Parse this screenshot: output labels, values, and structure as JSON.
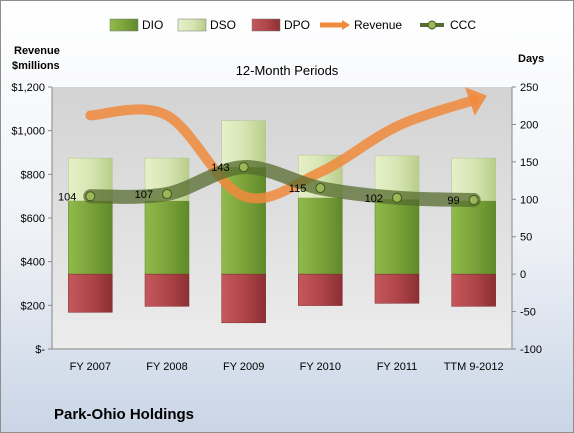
{
  "chart_data": {
    "type": "bar",
    "title": "Park-Ohio Holdings",
    "subtitle": "12-Month Periods",
    "categories": [
      "FY 2007",
      "FY 2008",
      "FY 2009",
      "FY 2010",
      "FY 2011",
      "TTM 9-2012"
    ],
    "left_axis": {
      "label_line1": "Revenue",
      "label_line2": "$millions",
      "ticks": [
        "$-",
        "$200",
        "$400",
        "$600",
        "$800",
        "$1,000",
        "$1,200"
      ],
      "range": [
        0,
        1200
      ]
    },
    "right_axis": {
      "label": "Days",
      "ticks": [
        "-100",
        "-50",
        "0",
        "50",
        "100",
        "150",
        "200",
        "250"
      ],
      "range": [
        -100,
        250
      ]
    },
    "series": [
      {
        "name": "DIO",
        "type": "stacked-bar",
        "axis": "days",
        "color": "#7ca33a",
        "values": [
          98,
          98,
          143,
          102,
          100,
          98
        ]
      },
      {
        "name": "DSO",
        "type": "stacked-bar",
        "axis": "days",
        "color": "#d7e6b4",
        "values": [
          57,
          57,
          62,
          57,
          58,
          57
        ]
      },
      {
        "name": "DPO",
        "type": "bar-negative",
        "axis": "days",
        "color": "#b0464a",
        "values": [
          51,
          43,
          65,
          42,
          39,
          43
        ]
      },
      {
        "name": "Revenue",
        "type": "line",
        "axis": "revenue",
        "color": "#f08a3c",
        "values": [
          1070,
          1070,
          700,
          810,
          1020,
          1140
        ]
      },
      {
        "name": "CCC",
        "type": "line",
        "axis": "days",
        "color": "#556b2f",
        "values": [
          104,
          107,
          143,
          115,
          102,
          99
        ]
      }
    ],
    "legend": [
      "DIO",
      "DSO",
      "DPO",
      "Revenue",
      "CCC"
    ],
    "legend_position": "top",
    "grid": false
  }
}
